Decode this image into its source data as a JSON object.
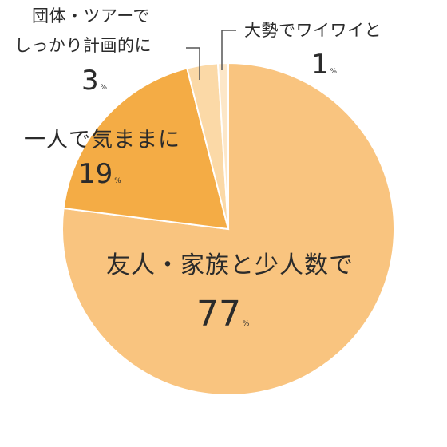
{
  "chart_data": {
    "type": "pie",
    "start_angle_deg": 0,
    "direction": "clockwise",
    "slices": [
      {
        "label": "友人・家族と少人数で",
        "value": 77,
        "color": "#f9c47f"
      },
      {
        "label": "一人で気ままに",
        "value": 19,
        "color": "#f4ac45"
      },
      {
        "label": "団体・ツアーでしっかり計画的に",
        "value": 3,
        "color": "#fbd9a7"
      },
      {
        "label": "大勢でワイワイと",
        "value": 1,
        "color": "#fde7c8"
      }
    ],
    "labels": {
      "friends": {
        "text": "友人・家族と少人数で",
        "pct": "77",
        "unit": "%"
      },
      "solo": {
        "text": "一人で気ままに",
        "pct": "19",
        "unit": "%"
      },
      "group_line1": "団体・ツアーで",
      "group_line2": "しっかり計画的に",
      "group_pct": "3",
      "group_unit": "%",
      "crowd": {
        "text": "大勢でワイワイと",
        "pct": "1",
        "unit": "%"
      }
    }
  }
}
